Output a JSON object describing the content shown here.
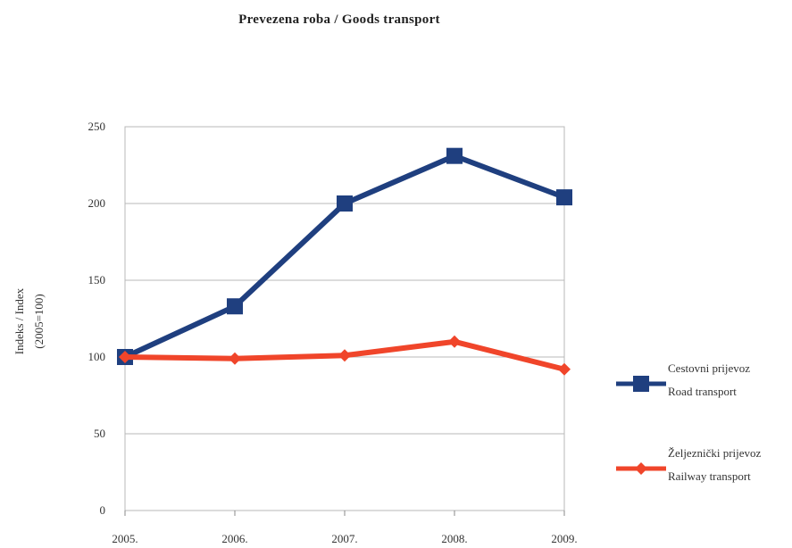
{
  "chart_data": {
    "type": "line",
    "title": "Prevezena roba / Goods transport",
    "ylabel_line1": "Indeks / Index",
    "ylabel_line2": "(2005=100)",
    "categories": [
      "2005.",
      "2006.",
      "2007.",
      "2008.",
      "2009."
    ],
    "ylim": [
      0,
      250
    ],
    "yticks": [
      "0",
      "50",
      "100",
      "150",
      "200",
      "250"
    ],
    "grid": true,
    "legend_position": "right",
    "series": [
      {
        "name_line1": "Cestovni prijevoz",
        "name_line2": "Road transport",
        "values": [
          100,
          133,
          200,
          231,
          204
        ],
        "color": "#1f3f7f",
        "marker": "square"
      },
      {
        "name_line1": "Željeznički prijevoz",
        "name_line2": "Railway transport",
        "values": [
          100,
          99,
          101,
          110,
          92
        ],
        "color": "#f0452a",
        "marker": "diamond"
      }
    ]
  }
}
